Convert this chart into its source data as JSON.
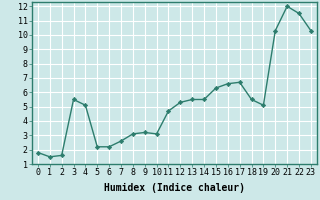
{
  "x": [
    0,
    1,
    2,
    3,
    4,
    5,
    6,
    7,
    8,
    9,
    10,
    11,
    12,
    13,
    14,
    15,
    16,
    17,
    18,
    19,
    20,
    21,
    22,
    23
  ],
  "y": [
    1.8,
    1.5,
    1.6,
    5.5,
    5.1,
    2.2,
    2.2,
    2.6,
    3.1,
    3.2,
    3.1,
    4.7,
    5.3,
    5.5,
    5.5,
    6.3,
    6.6,
    6.7,
    5.5,
    5.1,
    10.3,
    12.0,
    11.5,
    10.3
  ],
  "line_color": "#2d7d6d",
  "marker": "D",
  "marker_size": 2.2,
  "bg_color": "#cde8e8",
  "grid_color": "#ffffff",
  "xlabel": "Humidex (Indice chaleur)",
  "xlim": [
    -0.5,
    23.5
  ],
  "ylim": [
    1,
    12.3
  ],
  "yticks": [
    1,
    2,
    3,
    4,
    5,
    6,
    7,
    8,
    9,
    10,
    11,
    12
  ],
  "xticks": [
    0,
    1,
    2,
    3,
    4,
    5,
    6,
    7,
    8,
    9,
    10,
    11,
    12,
    13,
    14,
    15,
    16,
    17,
    18,
    19,
    20,
    21,
    22,
    23
  ],
  "xlabel_fontsize": 7.0,
  "tick_fontsize": 6.0,
  "linewidth": 1.0
}
